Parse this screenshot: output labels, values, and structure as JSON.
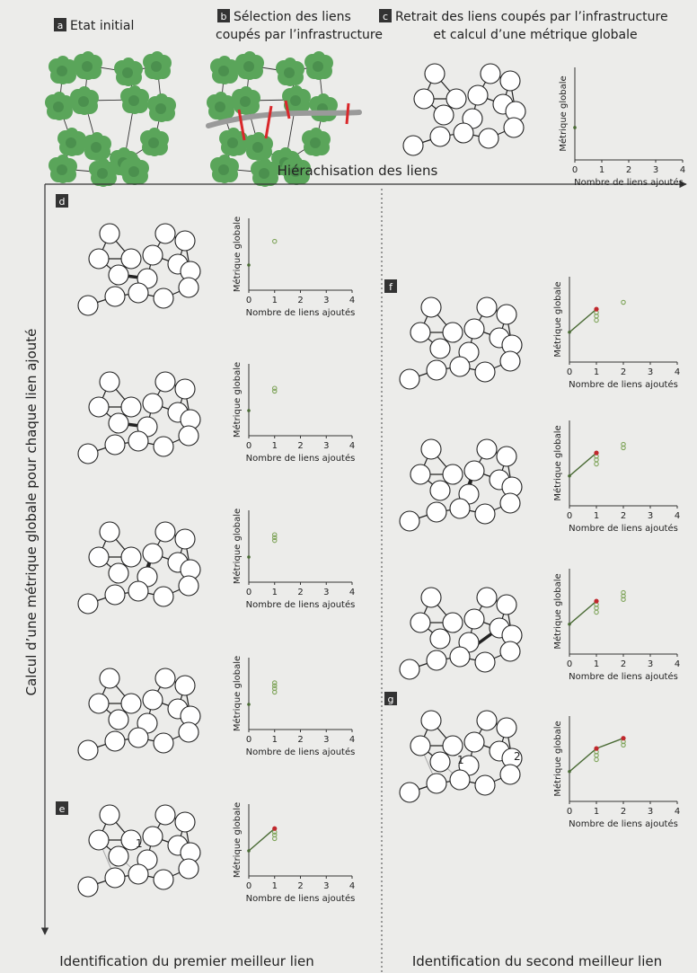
{
  "panels": {
    "a": {
      "letter": "a",
      "title": "Etat initial"
    },
    "b": {
      "letter": "b",
      "title_line1": "Sélection des liens",
      "title_line2": "coupés par l’infrastructure"
    },
    "c": {
      "letter": "c",
      "title_line1": "Retrait des liens coupés par l’infrastructure",
      "title_line2": "et calcul d’une métrique globale"
    },
    "d": {
      "letter": "d"
    },
    "e": {
      "letter": "e"
    },
    "f": {
      "letter": "f"
    },
    "g": {
      "letter": "g"
    }
  },
  "axes": {
    "horizontal_title": "Hiérachisation des liens",
    "vertical_title": "Calcul d’une métrique globale pour chaque lien ajouté"
  },
  "footer": {
    "left": "Identification du premier meilleur lien",
    "right": "Identification du second meilleur lien"
  },
  "link_numbers": {
    "first": "1",
    "second": "2"
  },
  "colors": {
    "background": "#ececea",
    "habitat_green": "#5aa55a",
    "habitat_dark": "#3f7f45",
    "infrastructure": "#9a9a9a",
    "cut_link": "#d9282b",
    "best_link": "#b3191e",
    "chart_line": "#4a6b35",
    "best_point": "#c0282d",
    "candidate_point": "#7fa45a"
  },
  "chart_data": [
    {
      "panel": "c",
      "type": "scatter",
      "xlabel": "Nombre de liens ajoutés",
      "ylabel": "Métrique globale",
      "xticks": [
        "0",
        "1",
        "2",
        "3",
        "4"
      ],
      "xlim": [
        0,
        4
      ],
      "ylim": [
        0,
        1
      ],
      "baseline": [
        [
          0,
          0.35
        ]
      ],
      "best_points": [],
      "candidates": []
    },
    {
      "panel": "d1",
      "type": "scatter",
      "xlabel": "Nombre de liens ajoutés",
      "ylabel": "Métrique globale",
      "xticks": [
        "0",
        "1",
        "2",
        "3",
        "4"
      ],
      "xlim": [
        0,
        4
      ],
      "ylim": [
        0,
        1
      ],
      "baseline": [
        [
          0,
          0.35
        ]
      ],
      "best_points": [],
      "candidates": [
        [
          1,
          0.68
        ]
      ]
    },
    {
      "panel": "d2",
      "type": "scatter",
      "xlabel": "Nombre de liens ajoutés",
      "ylabel": "Métrique globale",
      "xticks": [
        "0",
        "1",
        "2",
        "3",
        "4"
      ],
      "xlim": [
        0,
        4
      ],
      "ylim": [
        0,
        1
      ],
      "baseline": [
        [
          0,
          0.35
        ]
      ],
      "best_points": [],
      "candidates": [
        [
          1,
          0.62
        ],
        [
          1,
          0.66
        ]
      ]
    },
    {
      "panel": "d3",
      "type": "scatter",
      "xlabel": "Nombre de liens ajoutés",
      "ylabel": "Métrique globale",
      "xticks": [
        "0",
        "1",
        "2",
        "3",
        "4"
      ],
      "xlim": [
        0,
        4
      ],
      "ylim": [
        0,
        1
      ],
      "baseline": [
        [
          0,
          0.35
        ]
      ],
      "best_points": [],
      "candidates": [
        [
          1,
          0.58
        ],
        [
          1,
          0.62
        ],
        [
          1,
          0.66
        ]
      ]
    },
    {
      "panel": "d4",
      "type": "scatter",
      "xlabel": "Nombre de liens ajoutés",
      "ylabel": "Métrique globale",
      "xticks": [
        "0",
        "1",
        "2",
        "3",
        "4"
      ],
      "xlim": [
        0,
        4
      ],
      "ylim": [
        0,
        1
      ],
      "baseline": [
        [
          0,
          0.35
        ]
      ],
      "best_points": [],
      "candidates": [
        [
          1,
          0.52
        ],
        [
          1,
          0.57
        ],
        [
          1,
          0.61
        ],
        [
          1,
          0.65
        ]
      ]
    },
    {
      "panel": "e",
      "type": "line",
      "xlabel": "Nombre de liens ajoutés",
      "ylabel": "Métrique globale",
      "xticks": [
        "0",
        "1",
        "2",
        "3",
        "4"
      ],
      "xlim": [
        0,
        4
      ],
      "ylim": [
        0,
        1
      ],
      "baseline": [
        [
          0,
          0.35
        ]
      ],
      "best_points": [
        [
          1,
          0.66
        ]
      ],
      "candidates": [
        [
          1,
          0.52
        ],
        [
          1,
          0.57
        ],
        [
          1,
          0.61
        ]
      ]
    },
    {
      "panel": "f1",
      "type": "line",
      "xlabel": "Nombre de liens ajoutés",
      "ylabel": "Métrique globale",
      "xticks": [
        "0",
        "1",
        "2",
        "3",
        "4"
      ],
      "xlim": [
        0,
        4
      ],
      "ylim": [
        0,
        1
      ],
      "baseline": [
        [
          0,
          0.35
        ]
      ],
      "best_points": [
        [
          1,
          0.62
        ]
      ],
      "candidates": [
        [
          1,
          0.49
        ],
        [
          1,
          0.54
        ],
        [
          1,
          0.58
        ],
        [
          2,
          0.7
        ]
      ]
    },
    {
      "panel": "f2",
      "type": "line",
      "xlabel": "Nombre de liens ajoutés",
      "ylabel": "Métrique globale",
      "xticks": [
        "0",
        "1",
        "2",
        "3",
        "4"
      ],
      "xlim": [
        0,
        4
      ],
      "ylim": [
        0,
        1
      ],
      "baseline": [
        [
          0,
          0.35
        ]
      ],
      "best_points": [
        [
          1,
          0.62
        ]
      ],
      "candidates": [
        [
          1,
          0.49
        ],
        [
          1,
          0.54
        ],
        [
          1,
          0.58
        ],
        [
          2,
          0.68
        ],
        [
          2,
          0.72
        ]
      ]
    },
    {
      "panel": "f3",
      "type": "line",
      "xlabel": "Nombre de liens ajoutés",
      "ylabel": "Métrique globale",
      "xticks": [
        "0",
        "1",
        "2",
        "3",
        "4"
      ],
      "xlim": [
        0,
        4
      ],
      "ylim": [
        0,
        1
      ],
      "baseline": [
        [
          0,
          0.35
        ]
      ],
      "best_points": [
        [
          1,
          0.62
        ]
      ],
      "candidates": [
        [
          1,
          0.49
        ],
        [
          1,
          0.54
        ],
        [
          1,
          0.58
        ],
        [
          2,
          0.64
        ],
        [
          2,
          0.68
        ],
        [
          2,
          0.72
        ]
      ]
    },
    {
      "panel": "g",
      "type": "line",
      "xlabel": "Nombre de liens ajoutés",
      "ylabel": "Métrique globale",
      "xticks": [
        "0",
        "1",
        "2",
        "3",
        "4"
      ],
      "xlim": [
        0,
        4
      ],
      "ylim": [
        0,
        1
      ],
      "baseline": [
        [
          0,
          0.35
        ]
      ],
      "best_points": [
        [
          1,
          0.62
        ],
        [
          2,
          0.74
        ]
      ],
      "candidates": [
        [
          1,
          0.49
        ],
        [
          1,
          0.54
        ],
        [
          1,
          0.58
        ],
        [
          2,
          0.66
        ],
        [
          2,
          0.7
        ]
      ]
    }
  ]
}
